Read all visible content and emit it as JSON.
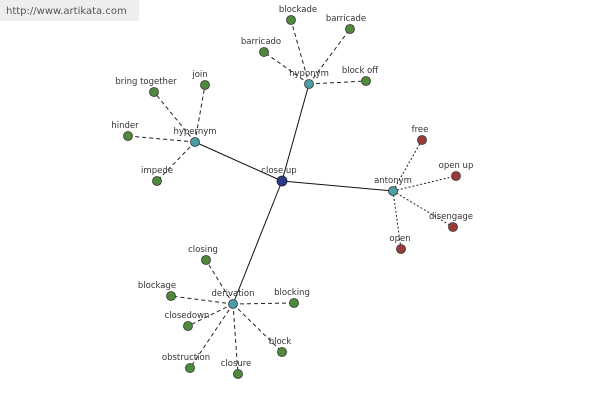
{
  "url": "http://www.artikata.com",
  "center": {
    "label": "close up"
  },
  "branches": [
    {
      "label": "hypernym",
      "children": [
        "bring together",
        "join",
        "hinder",
        "impede"
      ]
    },
    {
      "label": "hyponym",
      "children": [
        "blockade",
        "barricade",
        "barricado",
        "block off"
      ]
    },
    {
      "label": "antonym",
      "children": [
        "free",
        "open up",
        "disengage",
        "open"
      ]
    },
    {
      "label": "derivation",
      "children": [
        "closing",
        "blockage",
        "blocking",
        "closedown",
        "block",
        "obstruction",
        "closure"
      ]
    }
  ]
}
